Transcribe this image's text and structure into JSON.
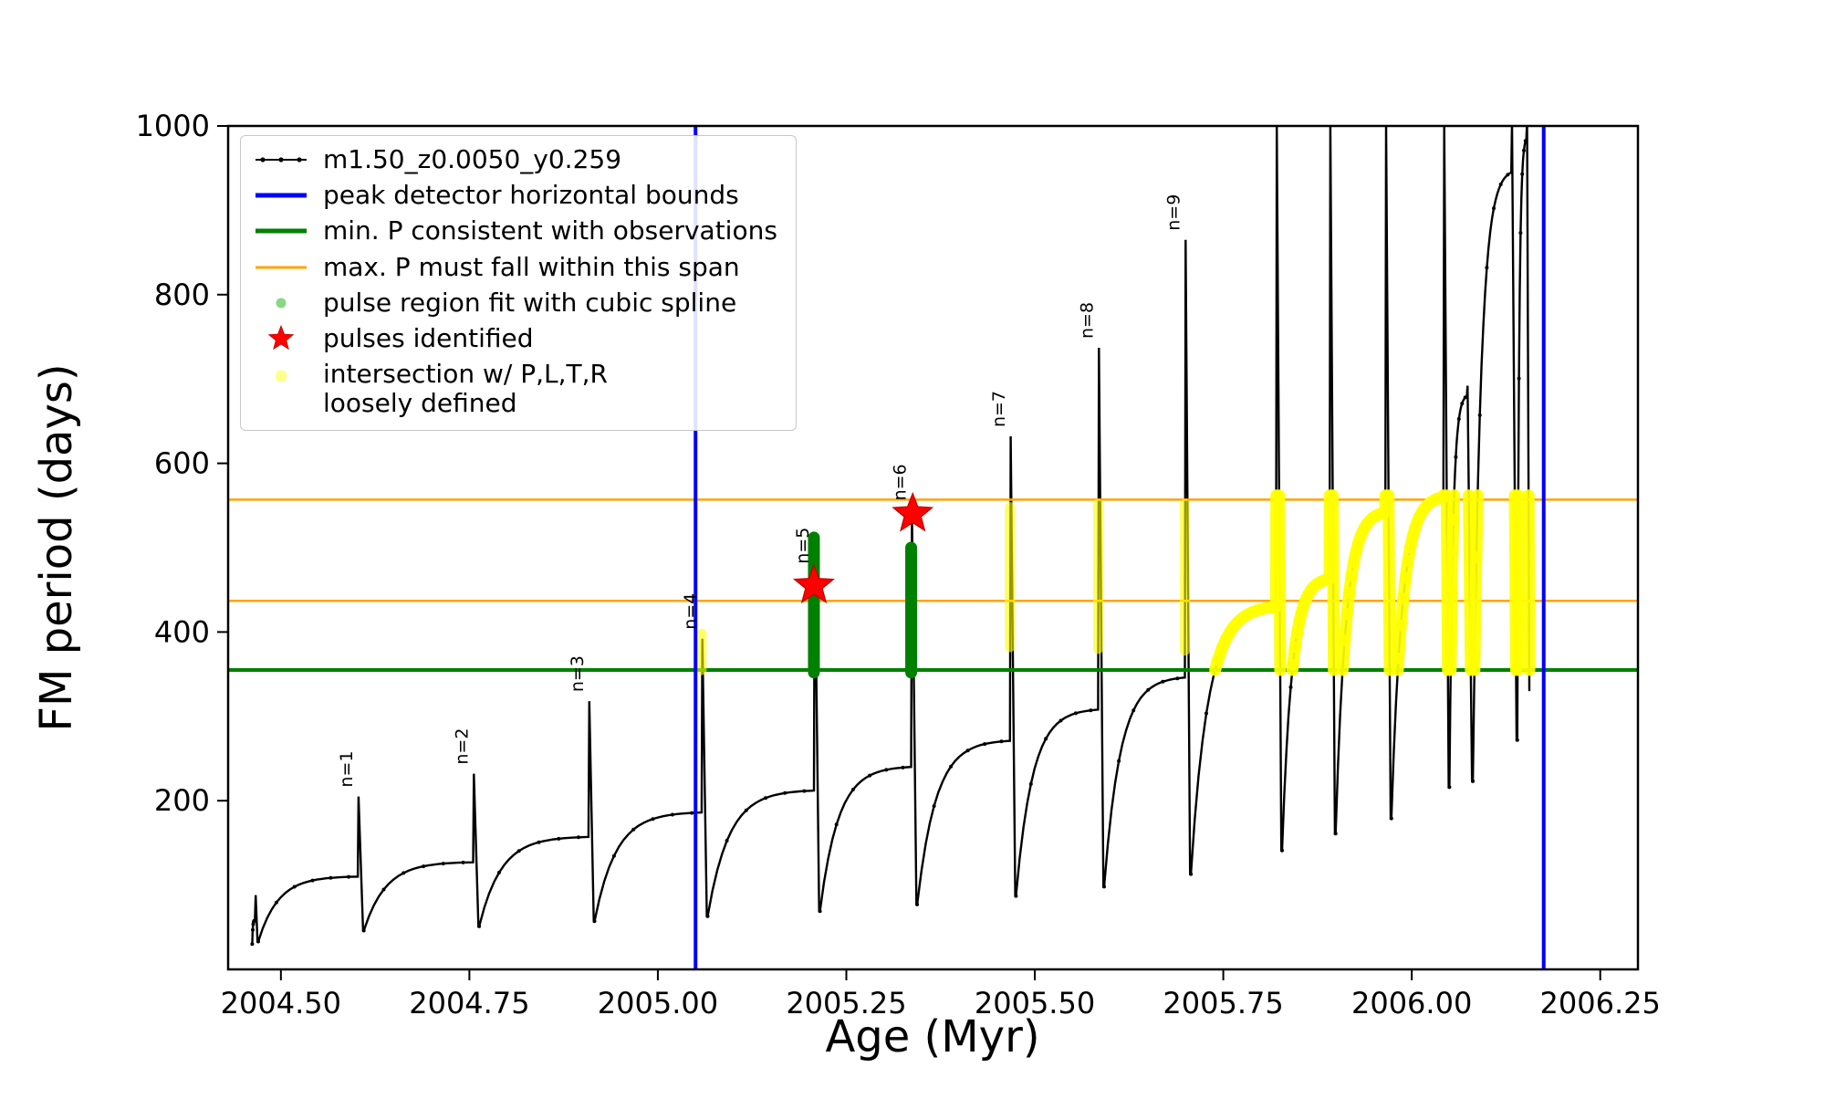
{
  "legend": {
    "items": [
      {
        "label": "m1.50_z0.0050_y0.259"
      },
      {
        "label": "peak detector horizontal bounds"
      },
      {
        "label": "min. P consistent with observations"
      },
      {
        "label": "max. P must fall within this span"
      },
      {
        "label": "pulse region fit with cubic spline"
      },
      {
        "label": "pulses identified"
      },
      {
        "label": "intersection w/ P,L,T,R",
        "label2": "loosely defined"
      }
    ]
  },
  "chart_data": {
    "type": "line",
    "title": "",
    "xlabel": "Age (Myr)",
    "ylabel": "FM period (days)",
    "xlim": [
      2004.43,
      2006.3
    ],
    "ylim": [
      0,
      1000
    ],
    "xticks": [
      2004.5,
      2004.75,
      2005.0,
      2005.25,
      2005.5,
      2005.75,
      2006.0,
      2006.25
    ],
    "yticks": [
      200,
      400,
      600,
      800,
      1000
    ],
    "grid": false,
    "legend_position": "upper left",
    "series_name": "m1.50_z0.0050_y0.259",
    "series_cycles_format": "[x_start_of_interpulse_min, y_min, x_spike, y_plateau_before_spike, y_spike_peak]",
    "series_cycles": [
      [
        2004.462,
        30,
        2004.4655,
        58,
        88
      ],
      [
        2004.47,
        33,
        2004.602,
        110,
        205
      ],
      [
        2004.61,
        46,
        2004.755,
        127,
        232
      ],
      [
        2004.763,
        51,
        2004.908,
        157,
        318
      ],
      [
        2004.916,
        57,
        2005.058,
        186,
        392
      ],
      [
        2005.066,
        63,
        2005.207,
        212,
        512
      ],
      [
        2005.215,
        69,
        2005.336,
        240,
        540
      ],
      [
        2005.344,
        77,
        2005.467,
        271,
        632
      ],
      [
        2005.475,
        87,
        2005.584,
        308,
        737
      ],
      [
        2005.592,
        98,
        2005.699,
        346,
        865
      ],
      [
        2005.707,
        113,
        2005.82,
        430,
        1005
      ],
      [
        2005.828,
        141,
        2005.891,
        463,
        1005
      ],
      [
        2005.899,
        161,
        2005.965,
        542,
        1005
      ],
      [
        2005.973,
        179,
        2006.042,
        560,
        1005
      ],
      [
        2006.05,
        216,
        2006.073,
        680,
        692
      ],
      [
        2006.081,
        223,
        2006.132,
        945,
        1005
      ],
      [
        2006.14,
        272,
        2006.152,
        985,
        1005
      ]
    ],
    "series_end_y": 330,
    "pulse_labels": [
      {
        "label": "n=1",
        "x": 2004.602,
        "y": 205
      },
      {
        "label": "n=2",
        "x": 2004.755,
        "y": 232
      },
      {
        "label": "n=3",
        "x": 2004.908,
        "y": 318
      },
      {
        "label": "n=4",
        "x": 2005.058,
        "y": 392
      },
      {
        "label": "n=5",
        "x": 2005.207,
        "y": 470
      },
      {
        "label": "n=6",
        "x": 2005.336,
        "y": 545
      },
      {
        "label": "n=7",
        "x": 2005.467,
        "y": 632
      },
      {
        "label": "n=8",
        "x": 2005.584,
        "y": 737
      },
      {
        "label": "n=9",
        "x": 2005.699,
        "y": 865
      }
    ],
    "vlines_blue": [
      2005.05,
      2006.175
    ],
    "hline_green": 355,
    "hlines_orange": [
      437,
      557
    ],
    "green_segments": [
      {
        "x": 2005.207,
        "y0": 352,
        "y1": 512
      },
      {
        "x": 2005.336,
        "y0": 352,
        "y1": 500
      }
    ],
    "stars": [
      {
        "x": 2005.207,
        "y": 455
      },
      {
        "x": 2005.338,
        "y": 540
      }
    ],
    "yellow_segments": [
      {
        "x": 2005.058,
        "y0": 355,
        "y1": 398
      },
      {
        "x": 2005.467,
        "y0": 382,
        "y1": 548
      },
      {
        "x": 2005.584,
        "y0": 380,
        "y1": 552
      },
      {
        "x": 2005.699,
        "y0": 378,
        "y1": 552
      }
    ],
    "yellow_band": {
      "x_start": 2005.74,
      "y_min": 355,
      "y_max": 562
    },
    "colors": {
      "series": "#000000",
      "peak_bounds": "#0000ff",
      "min_p_line": "#008000",
      "max_p_line": "#ffa500",
      "pulse_fit": "#008000",
      "pulse_fit_legend": "#86d986",
      "pulse_star": "#ff0000",
      "intersection": "#ffff00"
    }
  }
}
